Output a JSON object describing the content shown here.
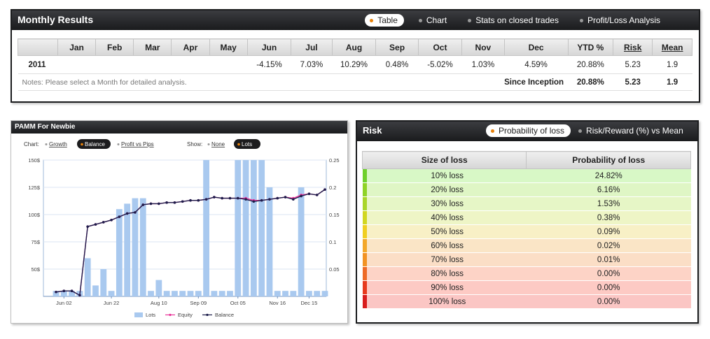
{
  "monthly": {
    "title": "Monthly Results",
    "tabs": [
      "Table",
      "Chart",
      "Stats on closed trades",
      "Profit/Loss Analysis"
    ],
    "headers": [
      "",
      "Jan",
      "Feb",
      "Mar",
      "Apr",
      "May",
      "Jun",
      "Jul",
      "Aug",
      "Sep",
      "Oct",
      "Nov",
      "Dec",
      "YTD %",
      "Risk",
      "Mean"
    ],
    "row": {
      "year": "2011",
      "cells": [
        "",
        "",
        "",
        "",
        "",
        "-4.15%",
        "7.03%",
        "10.29%",
        "0.48%",
        "-5.02%",
        "1.03%",
        "4.59%",
        "20.88%",
        "5.23",
        "1.9"
      ]
    },
    "note": "Notes: Please select a Month for detailed analysis.",
    "since_label": "Since Inception",
    "since_ytd": "20.88%",
    "since_risk": "5.23",
    "since_mean": "1.9"
  },
  "pamm": {
    "title": "PAMM For Newbie",
    "chart_label": "Chart:",
    "chart_options": [
      "Growth",
      "Balance",
      "Profit vs Pips"
    ],
    "show_label": "Show:",
    "show_options": [
      "None",
      "Lots"
    ],
    "active_chart": "Balance",
    "active_show": "Lots"
  },
  "chart_data": {
    "type": "bar",
    "title": "",
    "xlabel": "",
    "ylabel": "",
    "x_tick_labels": [
      "Jun 02",
      "Jun 22",
      "Aug 10",
      "Sep 09",
      "Oct 05",
      "Nov 16",
      "Dec 15"
    ],
    "y_left_ticks": [
      "50$",
      "75$",
      "100$",
      "125$",
      "150$"
    ],
    "y_right_ticks": [
      "0.05",
      "0.1",
      "0.15",
      "0.2",
      "0.25"
    ],
    "ylim_left": [
      25,
      150
    ],
    "ylim_right": [
      0,
      0.25
    ],
    "legend": [
      "Lots",
      "Equity",
      "Balance"
    ],
    "legend_placement": "bottom",
    "colors": {
      "lots": "#a9c9ef",
      "equity": "#e8359a",
      "balance": "#1c1d4a"
    },
    "series": [
      {
        "name": "Lots",
        "axis": "right",
        "values": [
          0.01,
          0.01,
          0.01,
          0.01,
          0.07,
          0.02,
          0.05,
          0.01,
          0.16,
          0.17,
          0.18,
          0.18,
          0.01,
          0.03,
          0.01,
          0.01,
          0.01,
          0.01,
          0.01,
          0.25,
          0.01,
          0.01,
          0.01,
          0.25,
          0.25,
          0.25,
          0.25,
          0.2,
          0.01,
          0.01,
          0.01,
          0.2,
          0.01,
          0.01,
          0.01
        ]
      },
      {
        "name": "Equity",
        "axis": "left",
        "values": [
          29,
          30,
          30,
          26,
          89,
          91,
          93,
          95,
          98,
          101,
          102,
          109,
          110,
          110,
          111,
          111,
          112,
          113,
          113,
          114,
          116,
          115,
          115,
          115,
          115,
          113,
          113,
          114,
          115,
          116,
          115,
          118,
          119,
          118,
          123
        ]
      },
      {
        "name": "Balance",
        "axis": "left",
        "values": [
          29,
          30,
          30,
          26,
          89,
          91,
          93,
          95,
          98,
          101,
          102,
          109,
          110,
          110,
          111,
          111,
          112,
          113,
          113,
          114,
          116,
          115,
          115,
          115,
          114,
          112,
          113,
          114,
          115,
          116,
          114,
          117,
          119,
          118,
          123
        ]
      }
    ]
  },
  "risk": {
    "title": "Risk",
    "tabs": [
      "Probability of loss",
      "Risk/Reward (%) vs Mean"
    ],
    "headers": [
      "Size of loss",
      "Probability of loss"
    ],
    "rows": [
      {
        "size": "10% loss",
        "prob": "24.82%",
        "color": "#6fd02c",
        "bg": "#d8f8c6"
      },
      {
        "size": "20% loss",
        "prob": "6.16%",
        "color": "#8fd327",
        "bg": "#dff6c5"
      },
      {
        "size": "30% loss",
        "prob": "1.53%",
        "color": "#a9d62a",
        "bg": "#e6f6c6"
      },
      {
        "size": "40% loss",
        "prob": "0.38%",
        "color": "#d1d722",
        "bg": "#eef5c6"
      },
      {
        "size": "50% loss",
        "prob": "0.09%",
        "color": "#f0cf21",
        "bg": "#f8f0c6"
      },
      {
        "size": "60% loss",
        "prob": "0.02%",
        "color": "#f3a82a",
        "bg": "#fae5c6"
      },
      {
        "size": "70% loss",
        "prob": "0.01%",
        "color": "#f29324",
        "bg": "#fbdec6"
      },
      {
        "size": "80% loss",
        "prob": "0.00%",
        "color": "#ee6a26",
        "bg": "#fdd3c6"
      },
      {
        "size": "90% loss",
        "prob": "0.00%",
        "color": "#e73a1e",
        "bg": "#fdcac4"
      },
      {
        "size": "100% loss",
        "prob": "0.00%",
        "color": "#d81d1d",
        "bg": "#fbc6c4"
      }
    ]
  }
}
